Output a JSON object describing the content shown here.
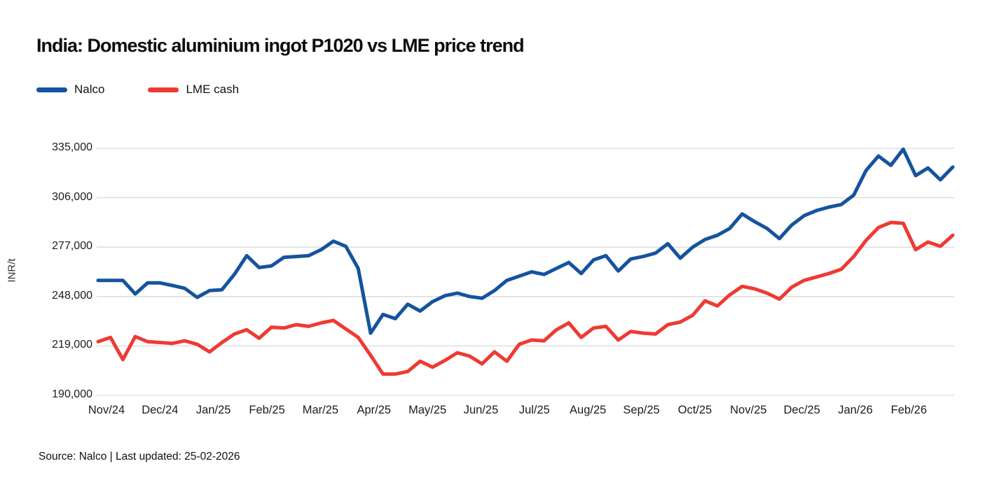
{
  "header": {
    "title": "India: Domestic aluminium ingot P1020 vs LME price trend"
  },
  "legend": {
    "items": [
      {
        "label": "Nalco",
        "color": "#15539E"
      },
      {
        "label": "LME cash",
        "color": "#EE3A33"
      }
    ]
  },
  "footer": {
    "source_note": "Source: Nalco | Last updated: 25-02-2026"
  },
  "chart_data": {
    "type": "line",
    "title": "India: Domestic aluminium ingot P1020 vs LME price trend",
    "xlabel": "",
    "ylabel": "INR/t",
    "ylim": [
      190000,
      335000
    ],
    "yticks": [
      190000,
      219000,
      248000,
      277000,
      306000,
      335000
    ],
    "ytick_labels": [
      "190,000",
      "219,000",
      "248,000",
      "277,000",
      "306,000",
      "335,000"
    ],
    "grid": "horizontal-only",
    "legend_position": "top-left",
    "x_axis": {
      "unit": "weekly points, Nov 2024 to Feb 2026",
      "tick_labels": [
        "Nov/24",
        "Dec/24",
        "Jan/25",
        "Feb/25",
        "Mar/25",
        "Apr/25",
        "May/25",
        "Jun/25",
        "Jul/25",
        "Aug/25",
        "Sep/25",
        "Oct/25",
        "Nov/25",
        "Dec/25",
        "Jan/26",
        "Feb/26"
      ]
    },
    "series": [
      {
        "name": "Nalco",
        "color": "#15539E",
        "values": [
          257500,
          257500,
          257500,
          249500,
          256000,
          256000,
          254500,
          252800,
          247500,
          251500,
          252000,
          261000,
          272000,
          265000,
          266000,
          271000,
          271500,
          272000,
          275500,
          280500,
          277500,
          264500,
          226500,
          237500,
          235000,
          243500,
          239500,
          245000,
          248500,
          250000,
          248000,
          247000,
          251500,
          257500,
          260000,
          262500,
          261000,
          264500,
          268000,
          261500,
          269500,
          272000,
          263000,
          270000,
          271500,
          273500,
          279000,
          270500,
          277000,
          281500,
          284000,
          288000,
          296500,
          292000,
          288000,
          282000,
          290000,
          295500,
          298500,
          300500,
          302000,
          307500,
          322000,
          330500,
          325000,
          334500,
          319000,
          323500,
          316500,
          324000
        ]
      },
      {
        "name": "LME cash",
        "color": "#EE3A33",
        "values": [
          221500,
          224000,
          211000,
          224500,
          221500,
          221000,
          220500,
          222000,
          220000,
          215500,
          221000,
          226000,
          228500,
          223500,
          230000,
          229500,
          231500,
          230500,
          232500,
          234000,
          229000,
          224000,
          213500,
          202500,
          202500,
          204000,
          210000,
          206500,
          210500,
          215000,
          213000,
          208500,
          215500,
          210000,
          220000,
          222500,
          222000,
          228500,
          232500,
          224000,
          229500,
          230500,
          222500,
          227500,
          226500,
          226000,
          231500,
          233000,
          237000,
          245500,
          242500,
          249000,
          254000,
          252500,
          250000,
          246500,
          253500,
          257500,
          259500,
          261500,
          264000,
          271500,
          281000,
          288500,
          291500,
          291000,
          275500,
          280000,
          277500,
          284000
        ]
      }
    ]
  }
}
